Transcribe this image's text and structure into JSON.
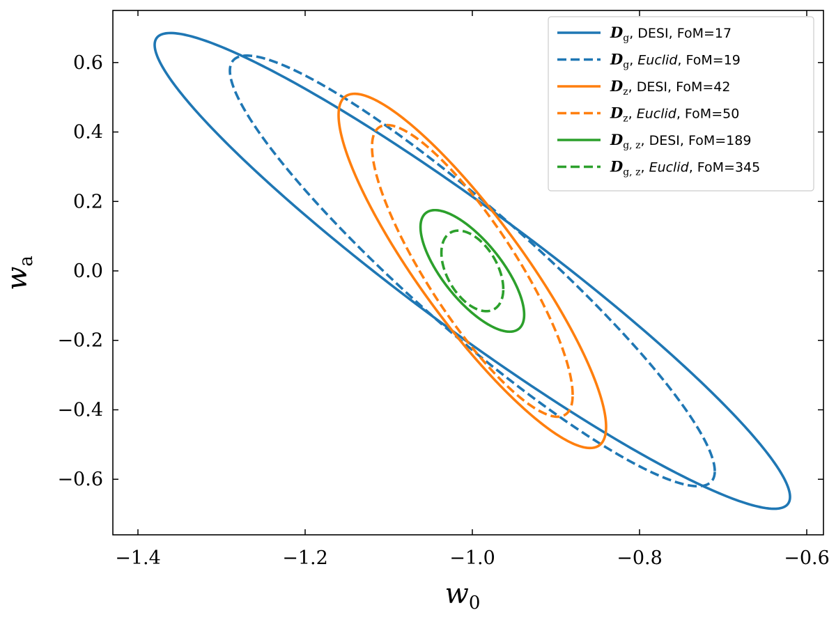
{
  "chart_data": {
    "type": "line",
    "title": "",
    "xlabel": "w",
    "xlabel_sub": "0",
    "ylabel": "w",
    "ylabel_sub": "a",
    "xlim": [
      -1.43,
      -0.58
    ],
    "ylim": [
      -0.76,
      0.75
    ],
    "xticks": [
      -1.4,
      -1.2,
      -1.0,
      -0.8,
      -0.6
    ],
    "xtick_labels": [
      "−1.4",
      "−1.2",
      "−1.0",
      "−0.8",
      "−0.6"
    ],
    "yticks": [
      -0.6,
      -0.4,
      -0.2,
      0.0,
      0.2,
      0.4,
      0.6
    ],
    "ytick_labels": [
      "−0.6",
      "−0.4",
      "−0.2",
      "0.0",
      "0.2",
      "0.4",
      "0.6"
    ],
    "grid": false,
    "legend_position": "top-right",
    "center": {
      "w0": -1.0,
      "wa": 0.0
    },
    "series": [
      {
        "id": "dg-desi",
        "symbol": "D",
        "sub": "g",
        "survey": "DESI",
        "italic": false,
        "fom": "FoM=17",
        "color": "#1f77b4",
        "dashed": false,
        "w0_extreme": 0.38,
        "wa_extreme": 0.685,
        "corr": -0.95
      },
      {
        "id": "dg-euclid",
        "symbol": "D",
        "sub": "g",
        "survey": "Euclid",
        "italic": true,
        "fom": "FoM=19",
        "color": "#1f77b4",
        "dashed": true,
        "w0_extreme": 0.29,
        "wa_extreme": 0.62,
        "corr": -0.93
      },
      {
        "id": "dz-desi",
        "symbol": "D",
        "sub": "z",
        "survey": "DESI",
        "italic": false,
        "fom": "FoM=42",
        "color": "#ff7f0e",
        "dashed": false,
        "w0_extreme": 0.16,
        "wa_extreme": 0.51,
        "corr": -0.88
      },
      {
        "id": "dz-euclid",
        "symbol": "D",
        "sub": "z",
        "survey": "Euclid",
        "italic": true,
        "fom": "FoM=50",
        "color": "#ff7f0e",
        "dashed": true,
        "w0_extreme": 0.12,
        "wa_extreme": 0.42,
        "corr": -0.85
      },
      {
        "id": "dgz-desi",
        "symbol": "D",
        "sub": "g, z",
        "survey": "DESI",
        "italic": false,
        "fom": "FoM=189",
        "color": "#2ca02c",
        "dashed": false,
        "w0_extreme": 0.062,
        "wa_extreme": 0.175,
        "corr": -0.72
      },
      {
        "id": "dgz-euclid",
        "symbol": "D",
        "sub": "g, z",
        "survey": "Euclid",
        "italic": true,
        "fom": "FoM=345",
        "color": "#2ca02c",
        "dashed": true,
        "w0_extreme": 0.037,
        "wa_extreme": 0.116,
        "corr": -0.45
      }
    ]
  }
}
